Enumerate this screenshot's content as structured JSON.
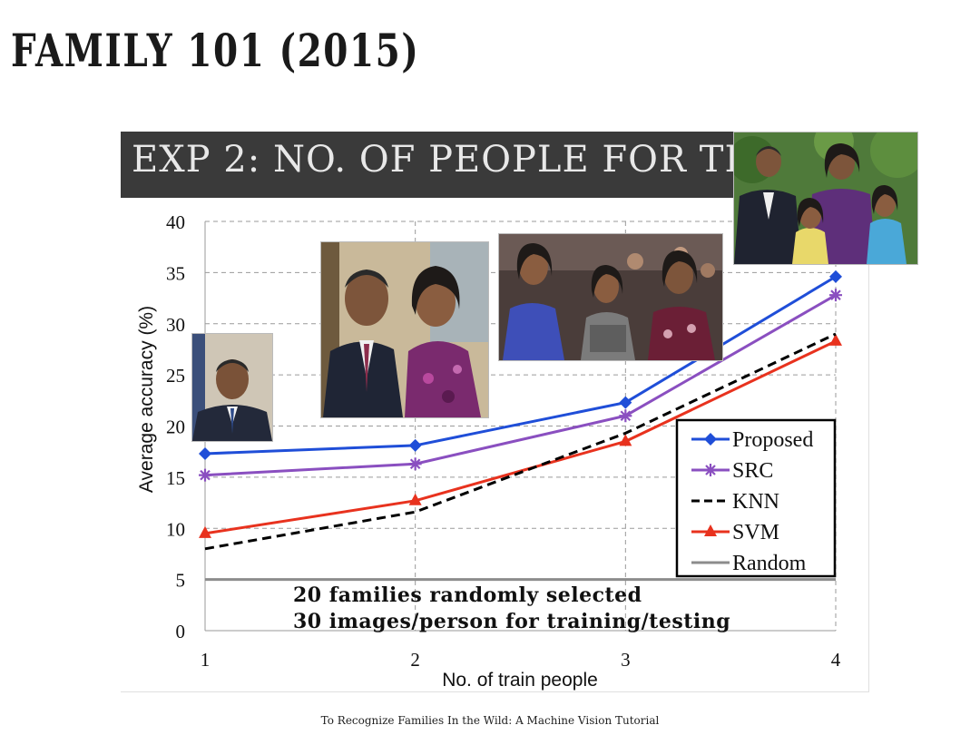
{
  "slide": {
    "title": "FAMILY 101 (2015)",
    "header": "EXP 2: NO. OF PEOPLE FOR TRA",
    "footer": "To Recognize Families In the Wild: A Machine Vision Tutorial"
  },
  "photos": [
    {
      "name": "single-person-photo",
      "description": "portrait of one person"
    },
    {
      "name": "two-people-photo",
      "description": "two people"
    },
    {
      "name": "three-people-photo",
      "description": "three people"
    },
    {
      "name": "four-people-photo",
      "description": "four people"
    }
  ],
  "chart_data": {
    "type": "line",
    "xlabel": "No. of train people",
    "ylabel": "Average accuracy (%)",
    "x": [
      1,
      2,
      3,
      4
    ],
    "xlim": [
      1,
      4
    ],
    "ylim": [
      0,
      40
    ],
    "yticks": [
      0,
      5,
      10,
      15,
      20,
      25,
      30,
      35,
      40
    ],
    "grid": true,
    "legend_position": "bottom-right",
    "series": [
      {
        "name": "Proposed",
        "values": [
          17.3,
          18.1,
          22.3,
          34.6
        ],
        "color": "#1f4ed8",
        "marker": "diamond",
        "dash": "solid"
      },
      {
        "name": "SRC",
        "values": [
          15.2,
          16.3,
          21.0,
          32.8
        ],
        "color": "#8a4fc0",
        "marker": "star",
        "dash": "solid"
      },
      {
        "name": "KNN",
        "values": [
          8.0,
          11.6,
          19.3,
          29.0
        ],
        "color": "#000000",
        "marker": "none",
        "dash": "dashed"
      },
      {
        "name": "SVM",
        "values": [
          9.5,
          12.7,
          18.5,
          28.3
        ],
        "color": "#e8321e",
        "marker": "triangle",
        "dash": "solid"
      },
      {
        "name": "Random",
        "values": [
          5.0,
          5.0,
          5.0,
          5.0
        ],
        "color": "#8c8c8c",
        "marker": "none",
        "dash": "solid"
      }
    ],
    "annotations": [
      "20 families randomly selected",
      "30 images/person for training/testing"
    ]
  }
}
